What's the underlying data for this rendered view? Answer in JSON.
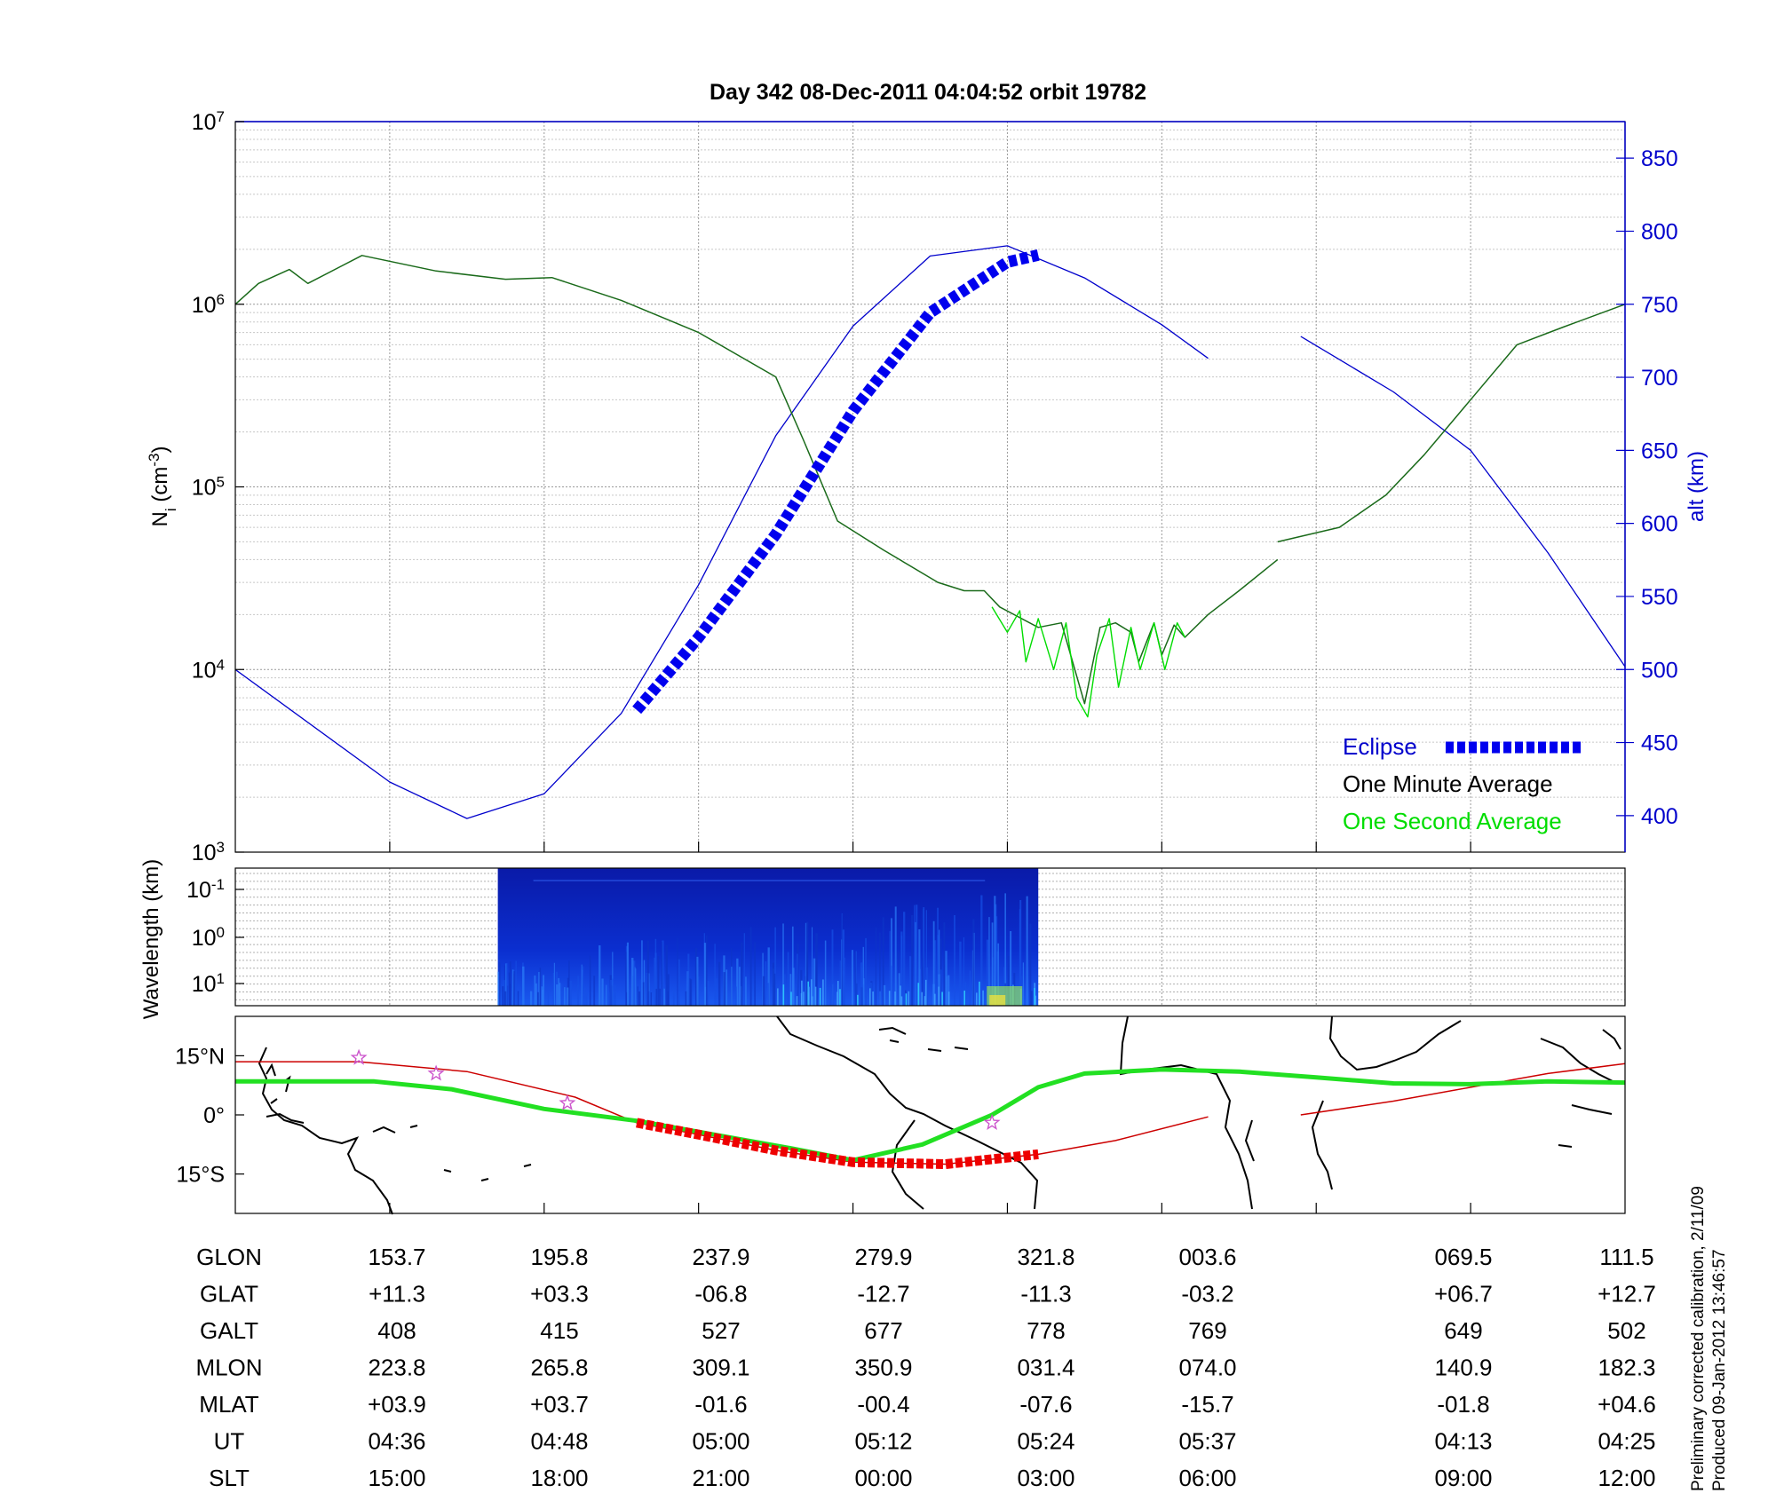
{
  "title": "Day 342  08-Dec-2011 04:04:52   orbit 19782",
  "side_note": {
    "line1": "Preliminary corrected calibration, 2/11/09",
    "line2": "Produced 09-Jan-2012 13:46:57"
  },
  "colors": {
    "density_green": "#00dd00",
    "density_black": "#000000",
    "density_dark": "#1a6a1a",
    "altitude": "#0000cc",
    "eclipse": "#0000ee",
    "track_green": "#22e022",
    "track_red": "#cc0000",
    "track_red_eclipse": "#ee0000",
    "star": "#cc55cc"
  },
  "chart_data": [
    {
      "type": "line",
      "id": "density_altitude",
      "ylabel_left": "N",
      "ylabel_left_sub": "i",
      "ylabel_left_unit": " (cm",
      "ylabel_left_exp": "-3",
      "ylabel_left_close": ")",
      "ylabel_right": "alt (km)",
      "y_left_log": true,
      "y_left_range": [
        1000,
        10000000
      ],
      "y_left_ticks": [
        {
          "base": "10",
          "exp": "3"
        },
        {
          "base": "10",
          "exp": "4"
        },
        {
          "base": "10",
          "exp": "5"
        },
        {
          "base": "10",
          "exp": "6"
        },
        {
          "base": "10",
          "exp": "7"
        }
      ],
      "y_right_range": [
        375,
        875
      ],
      "y_right_ticks": [
        "400",
        "450",
        "500",
        "550",
        "600",
        "650",
        "700",
        "750",
        "800",
        "850"
      ],
      "grid": true,
      "legend": {
        "placement": "bottom-right",
        "eclipse": "Eclipse",
        "minute": "One Minute Average",
        "second": "One Second Average"
      },
      "series": [
        {
          "name": "One Minute Average",
          "scale": "log-left",
          "segments": [
            [
              [
                0,
                1000000
              ],
              [
                0.15,
                1300000
              ],
              [
                0.35,
                1550000
              ],
              [
                0.47,
                1300000
              ],
              [
                0.82,
                1850000
              ],
              [
                1.3,
                1520000
              ],
              [
                1.75,
                1370000
              ],
              [
                2.05,
                1400000
              ],
              [
                2.5,
                1050000
              ],
              [
                3.0,
                700000
              ],
              [
                3.5,
                400000
              ],
              [
                3.68,
                180000
              ],
              [
                3.9,
                65000
              ],
              [
                4.2,
                45000
              ],
              [
                4.55,
                30000
              ],
              [
                4.72,
                27000
              ],
              [
                4.85,
                27000
              ],
              [
                4.95,
                22000
              ],
              [
                5.2,
                17000
              ],
              [
                5.35,
                18000
              ],
              [
                5.5,
                6500
              ],
              [
                5.6,
                17000
              ],
              [
                5.7,
                18000
              ],
              [
                5.8,
                16000
              ],
              [
                5.85,
                11000
              ],
              [
                5.95,
                18000
              ],
              [
                6.0,
                12000
              ],
              [
                6.08,
                17500
              ],
              [
                6.15,
                15000
              ],
              [
                6.3,
                20000
              ],
              [
                6.5,
                27000
              ],
              [
                6.75,
                40000
              ]
            ],
            [
              [
                6.75,
                50000
              ],
              [
                7.15,
                60000
              ],
              [
                7.45,
                90000
              ],
              [
                7.7,
                150000
              ],
              [
                8.0,
                300000
              ],
              [
                8.3,
                600000
              ],
              [
                8.6,
                750000
              ],
              [
                9.0,
                1000000
              ]
            ]
          ]
        },
        {
          "name": "One Second Average",
          "scale": "log-left",
          "segments": [
            [
              [
                4.9,
                22000
              ],
              [
                5.0,
                16000
              ],
              [
                5.08,
                21000
              ],
              [
                5.12,
                11000
              ],
              [
                5.2,
                19000
              ],
              [
                5.3,
                10000
              ],
              [
                5.38,
                18000
              ],
              [
                5.45,
                7000
              ],
              [
                5.52,
                5500
              ],
              [
                5.58,
                12000
              ],
              [
                5.66,
                19000
              ],
              [
                5.72,
                8000
              ],
              [
                5.8,
                17000
              ],
              [
                5.86,
                10000
              ],
              [
                5.95,
                18000
              ],
              [
                6.02,
                10000
              ],
              [
                6.1,
                18000
              ],
              [
                6.15,
                15000
              ]
            ]
          ]
        },
        {
          "name": "alt (km)",
          "scale": "linear-right",
          "segments": [
            [
              [
                0,
                500
              ],
              [
                1.0,
                423
              ],
              [
                1.5,
                398
              ],
              [
                2.0,
                415
              ],
              [
                2.5,
                470
              ],
              [
                3.0,
                558
              ],
              [
                3.5,
                660
              ],
              [
                4.0,
                735
              ],
              [
                4.5,
                783
              ],
              [
                5.0,
                790
              ],
              [
                5.5,
                768
              ],
              [
                6.0,
                736
              ],
              [
                6.3,
                713
              ]
            ],
            [
              [
                6.9,
                728
              ],
              [
                7.5,
                690
              ],
              [
                8.0,
                650
              ],
              [
                8.5,
                580
              ],
              [
                9.0,
                502
              ]
            ]
          ]
        },
        {
          "name": "Eclipse",
          "scale": "log-left",
          "segments": [
            [
              [
                2.6,
                6000
              ],
              [
                3.0,
                15000
              ],
              [
                3.5,
                55000
              ],
              [
                4.0,
                260000
              ],
              [
                4.5,
                900000
              ],
              [
                5.0,
                1700000
              ],
              [
                5.2,
                1860000
              ]
            ]
          ]
        }
      ]
    },
    {
      "type": "heatmap",
      "id": "spectrogram",
      "ylabel": "Wavelength (km)",
      "y_ticks": [
        {
          "base": "10",
          "exp": "-1"
        },
        {
          "base": "10",
          "exp": "0"
        },
        {
          "base": "10",
          "exp": "1"
        }
      ],
      "data_x_range": [
        1.7,
        5.2
      ],
      "grid": true
    },
    {
      "type": "line",
      "id": "ground_track",
      "y_ticks": [
        "15°N",
        "0°",
        "15°S"
      ],
      "y_range": [
        -25,
        25
      ],
      "series": [
        {
          "name": "track_green",
          "segments": [
            [
              [
                0,
                8.5
              ],
              [
                0.9,
                8.5
              ],
              [
                1.4,
                6.5
              ],
              [
                2.0,
                1.5
              ],
              [
                2.6,
                -1.5
              ],
              [
                3.1,
                -5
              ],
              [
                3.6,
                -8.5
              ],
              [
                4.0,
                -11.5
              ],
              [
                4.45,
                -7.5
              ],
              [
                4.9,
                0
              ],
              [
                5.2,
                7
              ],
              [
                5.5,
                10.5
              ],
              [
                6.0,
                11.5
              ],
              [
                6.5,
                11
              ],
              [
                7.0,
                9.5
              ],
              [
                7.5,
                8
              ],
              [
                8.0,
                7.8
              ],
              [
                8.5,
                8.5
              ],
              [
                9.0,
                8.2
              ]
            ]
          ]
        },
        {
          "name": "track_red",
          "segments": [
            [
              [
                0,
                13.5
              ],
              [
                0.8,
                13.5
              ],
              [
                1.5,
                11
              ],
              [
                2.2,
                4.5
              ],
              [
                2.6,
                -2
              ],
              [
                3.0,
                -5
              ],
              [
                3.5,
                -9
              ],
              [
                4.0,
                -12
              ],
              [
                4.6,
                -12.5
              ],
              [
                5.2,
                -10
              ],
              [
                5.7,
                -6.5
              ],
              [
                6.3,
                -0.5
              ]
            ],
            [
              [
                6.9,
                0
              ],
              [
                7.5,
                3.5
              ],
              [
                8.0,
                7
              ],
              [
                8.5,
                10.5
              ],
              [
                9.0,
                13
              ]
            ]
          ]
        },
        {
          "name": "track_red_eclipse",
          "segments": [
            [
              [
                2.6,
                -2
              ],
              [
                3.0,
                -5
              ],
              [
                3.5,
                -9
              ],
              [
                4.0,
                -12
              ],
              [
                4.6,
                -12.5
              ],
              [
                5.2,
                -10
              ]
            ]
          ]
        },
        {
          "name": "stars",
          "points": [
            [
              0.8,
              14.5
            ],
            [
              1.3,
              10.5
            ],
            [
              2.15,
              3
            ],
            [
              4.9,
              -2
            ]
          ]
        }
      ]
    }
  ],
  "table": {
    "rows": [
      {
        "label": "GLON",
        "values": [
          "153.7",
          "195.8",
          "237.9",
          "279.9",
          "321.8",
          "003.6",
          "069.5",
          "111.5"
        ]
      },
      {
        "label": "GLAT",
        "values": [
          "+11.3",
          "+03.3",
          "-06.8",
          "-12.7",
          "-11.3",
          "-03.2",
          "+06.7",
          "+12.7"
        ]
      },
      {
        "label": "GALT",
        "values": [
          "408",
          "415",
          "527",
          "677",
          "778",
          "769",
          "649",
          "502"
        ]
      },
      {
        "label": "MLON",
        "values": [
          "223.8",
          "265.8",
          "309.1",
          "350.9",
          "031.4",
          "074.0",
          "140.9",
          "182.3"
        ]
      },
      {
        "label": "MLAT",
        "values": [
          "+03.9",
          "+03.7",
          "-01.6",
          "-00.4",
          "-07.6",
          "-15.7",
          "-01.8",
          "+04.6"
        ]
      },
      {
        "label": "UT",
        "values": [
          "04:36",
          "04:48",
          "05:00",
          "05:12",
          "05:24",
          "05:37",
          "04:13",
          "04:25"
        ]
      },
      {
        "label": "SLT",
        "values": [
          "15:00",
          "18:00",
          "21:00",
          "00:00",
          "03:00",
          "06:00",
          "09:00",
          "12:00"
        ]
      }
    ]
  }
}
